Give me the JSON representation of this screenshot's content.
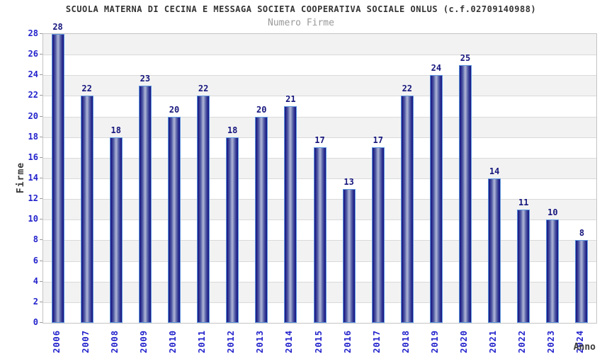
{
  "chart_data": {
    "type": "bar",
    "title": "SCUOLA MATERNA DI CECINA E MESSAGA SOCIETA COOPERATIVA SOCIALE ONLUS (c.f.02709140988)",
    "subtitle": "Numero Firme",
    "xlabel": "Anno",
    "ylabel": "Firme",
    "categories": [
      "2006",
      "2007",
      "2008",
      "2009",
      "2010",
      "2011",
      "2012",
      "2013",
      "2014",
      "2015",
      "2016",
      "2017",
      "2018",
      "2019",
      "2020",
      "2021",
      "2022",
      "2023",
      "2024"
    ],
    "values": [
      28,
      22,
      18,
      23,
      20,
      22,
      18,
      20,
      21,
      17,
      13,
      17,
      22,
      24,
      25,
      14,
      11,
      10,
      8
    ],
    "ylim": [
      0,
      28
    ],
    "ytick_step": 2,
    "grid": true,
    "legend_position": "none",
    "bar_labels_shown": true
  },
  "style": {
    "title_color": "#333333",
    "subtitle_color": "#999999",
    "tick_label_color": "#2222cc",
    "value_label_color": "#16167e",
    "axis_title_color": "#3a3a3a",
    "tick_mark_color": "#999999",
    "gridline_color": "#d9d9d9",
    "band_gray": "#f2f2f2",
    "band_white": "#ffffff",
    "bar_edge_dark": "#1d1d86",
    "bar_mid": "#555fa6",
    "bar_center_light": "#a7aed2",
    "bar_outline": "#5e97de"
  }
}
